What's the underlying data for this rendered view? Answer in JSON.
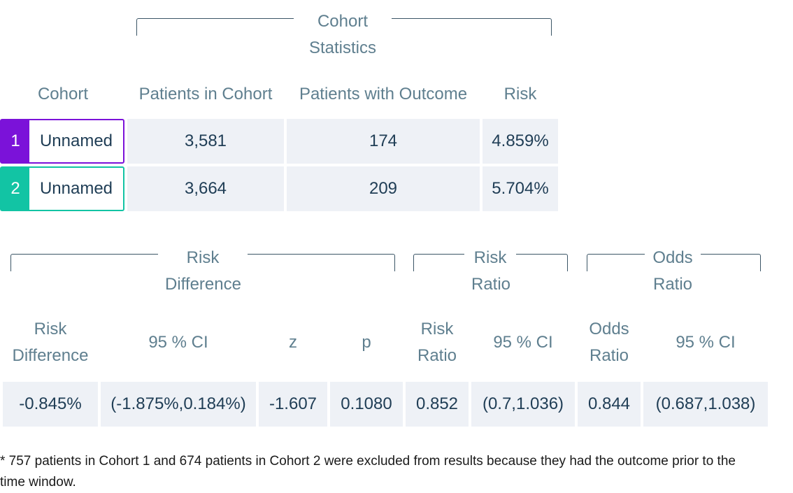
{
  "colors": {
    "cohort1": "#7b12d9",
    "cohort2": "#12c4a4",
    "header_text": "#5f7f8f",
    "cell_bg": "#eef1f6",
    "cell_text": "#1f3d55"
  },
  "cohort_section": {
    "group_title": "Cohort\nStatistics",
    "headers": {
      "cohort": "Cohort",
      "patients": "Patients in Cohort",
      "with_outcome": "Patients with Outcome",
      "risk": "Risk"
    },
    "rows": [
      {
        "num": "1",
        "name": "Unnamed",
        "patients": "3,581",
        "with_outcome": "174",
        "risk": "4.859%"
      },
      {
        "num": "2",
        "name": "Unnamed",
        "patients": "3,664",
        "with_outcome": "209",
        "risk": "5.704%"
      }
    ]
  },
  "comparison_section": {
    "groups": {
      "risk_difference": "Risk\nDifference",
      "risk_ratio": "Risk\nRatio",
      "odds_ratio": "Odds\nRatio"
    },
    "headers": {
      "rd": "Risk\nDifference",
      "rd_ci": "95 % CI",
      "z": "z",
      "p": "p",
      "rr": "Risk\nRatio",
      "rr_ci": "95 % CI",
      "or": "Odds\nRatio",
      "or_ci": "95 % CI"
    },
    "values": {
      "rd": "-0.845%",
      "rd_ci": "(-1.875%,0.184%)",
      "z": "-1.607",
      "p": "0.1080",
      "rr": "0.852",
      "rr_ci": "(0.7,1.036)",
      "or": "0.844",
      "or_ci": "(0.687,1.038)"
    }
  },
  "footnote": "* 757 patients in Cohort 1 and 674 patients in Cohort 2 were excluded from results because they had the outcome prior to the time window."
}
